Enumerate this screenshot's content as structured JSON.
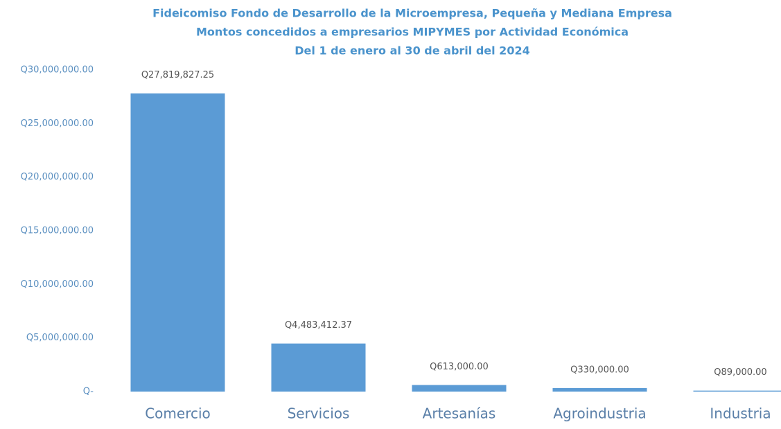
{
  "chart_data": {
    "type": "bar",
    "title": [
      "Fideicomiso Fondo de Desarrollo de la Microempresa, Pequeña y Mediana Empresa",
      "Montos concedidos a empresarios MIPYMES por Actividad Económica",
      "Del 1 de enero al 30 de abril del 2024"
    ],
    "categories": [
      "Comercio",
      "Servicios",
      "Artesanías",
      "Agroindustria",
      "Industria"
    ],
    "values": [
      27819827.25,
      4483412.37,
      613000,
      330000,
      89000
    ],
    "value_labels": [
      "Q27,819,827.25",
      "Q4,483,412.37",
      "Q613,000.00",
      "Q330,000.00",
      "Q89,000.00"
    ],
    "color": "#5b9bd5",
    "ylim": [
      0,
      30000000
    ],
    "yticks": [
      {
        "value": 0,
        "label": "Q-"
      },
      {
        "value": 5000000,
        "label": "Q5,000,000.00"
      },
      {
        "value": 10000000,
        "label": "Q10,000,000.00"
      },
      {
        "value": 15000000,
        "label": "Q15,000,000.00"
      },
      {
        "value": 20000000,
        "label": "Q20,000,000.00"
      },
      {
        "value": 25000000,
        "label": "Q25,000,000.00"
      },
      {
        "value": 30000000,
        "label": "Q30,000,000.00"
      }
    ],
    "grid": false
  }
}
